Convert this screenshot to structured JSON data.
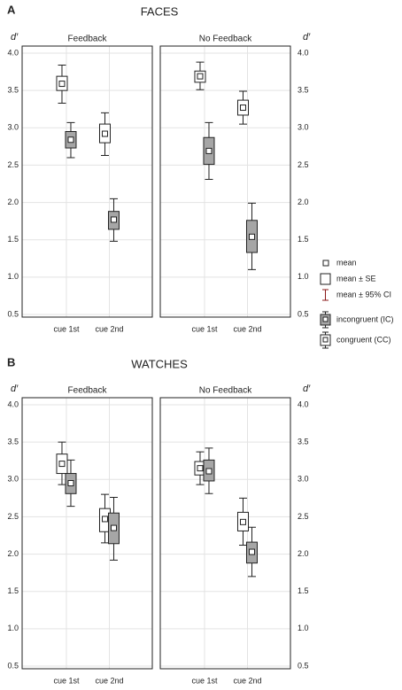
{
  "figure_rows": [
    {
      "label": "A",
      "title": "FACES"
    },
    {
      "label": "B",
      "title": "WATCHES"
    }
  ],
  "legend": [
    "mean",
    "mean ± SE",
    "mean ± 95% CI"
  ],
  "chart_data": [
    {
      "type": "box",
      "title": "Feedback",
      "ylabel": "d′",
      "yaxis_side": "left",
      "categories": [
        "cue 1st",
        "cue 2nd"
      ],
      "ylim": [
        0.5,
        4.0
      ],
      "yticks": [
        0.5,
        {
          "value": 1,
          "label": "1.0"
        },
        1.5,
        {
          "value": 2,
          "label": "2.0"
        },
        2.5,
        {
          "value": 3,
          "label": "3.0"
        },
        3.5,
        {
          "value": 4,
          "label": "4.0"
        }
      ],
      "grid": true,
      "series": [
        {
          "name": "congruent (CC)",
          "color": "#ffffff",
          "values": [
            3.59,
            2.92
          ],
          "se_range": [
            [
              3.5,
              3.69
            ],
            [
              2.8,
              3.05
            ]
          ],
          "ci_range": [
            [
              3.33,
              3.84
            ],
            [
              2.63,
              3.2
            ]
          ]
        },
        {
          "name": "incongruent (IC)",
          "color": "#a6a6a6",
          "values": [
            2.84,
            1.77
          ],
          "se_range": [
            [
              2.73,
              2.95
            ],
            [
              1.64,
              1.88
            ]
          ],
          "ci_range": [
            [
              2.6,
              3.07
            ],
            [
              1.48,
              2.05
            ]
          ]
        }
      ]
    },
    {
      "type": "box",
      "title": "No Feedback",
      "ylabel": "d′",
      "yaxis_side": "right",
      "categories": [
        "cue 1st",
        "cue 2nd"
      ],
      "ylim": [
        0.5,
        4.0
      ],
      "yticks": [
        0.5,
        {
          "value": 1,
          "label": "1.0"
        },
        1.5,
        {
          "value": 2,
          "label": "2.0"
        },
        2.5,
        {
          "value": 3,
          "label": "3.0"
        },
        3.5,
        {
          "value": 4,
          "label": "4.0"
        }
      ],
      "grid": true,
      "series": [
        {
          "name": "congruent (CC)",
          "color": "#ffffff",
          "values": [
            3.69,
            3.27
          ],
          "se_range": [
            [
              3.61,
              3.76
            ],
            [
              3.17,
              3.37
            ]
          ],
          "ci_range": [
            [
              3.51,
              3.88
            ],
            [
              3.05,
              3.49
            ]
          ]
        },
        {
          "name": "incongruent (IC)",
          "color": "#a6a6a6",
          "values": [
            2.69,
            1.54
          ],
          "se_range": [
            [
              2.51,
              2.87
            ],
            [
              1.33,
              1.76
            ]
          ],
          "ci_range": [
            [
              2.31,
              3.07
            ],
            [
              1.1,
              1.99
            ]
          ]
        }
      ]
    },
    {
      "type": "box",
      "title": "Feedback",
      "ylabel": "d′",
      "yaxis_side": "left",
      "categories": [
        "cue 1st",
        "cue 2nd"
      ],
      "ylim": [
        0.5,
        4.0
      ],
      "yticks": [
        0.5,
        {
          "value": 1,
          "label": "1.0"
        },
        1.5,
        {
          "value": 2,
          "label": "2.0"
        },
        2.5,
        {
          "value": 3,
          "label": "3.0"
        },
        3.5,
        {
          "value": 4,
          "label": "4.0"
        }
      ],
      "grid": true,
      "series": [
        {
          "name": "congruent (CC)",
          "color": "#ffffff",
          "values": [
            3.21,
            2.47
          ],
          "se_range": [
            [
              3.08,
              3.34
            ],
            [
              2.3,
              2.61
            ]
          ],
          "ci_range": [
            [
              2.93,
              3.5
            ],
            [
              2.15,
              2.8
            ]
          ]
        },
        {
          "name": "incongruent (IC)",
          "color": "#a6a6a6",
          "values": [
            2.95,
            2.35
          ],
          "se_range": [
            [
              2.81,
              3.08
            ],
            [
              2.14,
              2.55
            ]
          ],
          "ci_range": [
            [
              2.64,
              3.26
            ],
            [
              1.92,
              2.76
            ]
          ]
        }
      ]
    },
    {
      "type": "box",
      "title": "No Feedback",
      "ylabel": "d′",
      "yaxis_side": "right",
      "categories": [
        "cue 1st",
        "cue 2nd"
      ],
      "ylim": [
        0.5,
        4.0
      ],
      "yticks": [
        0.5,
        {
          "value": 1,
          "label": "1.0"
        },
        1.5,
        {
          "value": 2,
          "label": "2.0"
        },
        2.5,
        {
          "value": 3,
          "label": "3.0"
        },
        3.5,
        {
          "value": 4,
          "label": "4.0"
        }
      ],
      "grid": true,
      "series": [
        {
          "name": "congruent (CC)",
          "color": "#ffffff",
          "values": [
            3.15,
            2.43
          ],
          "se_range": [
            [
              3.06,
              3.24
            ],
            [
              2.31,
              2.56
            ]
          ],
          "ci_range": [
            [
              2.93,
              3.37
            ],
            [
              2.12,
              2.75
            ]
          ]
        },
        {
          "name": "incongruent (IC)",
          "color": "#a6a6a6",
          "values": [
            3.11,
            2.03
          ],
          "se_range": [
            [
              2.98,
              3.26
            ],
            [
              1.88,
              2.16
            ]
          ],
          "ci_range": [
            [
              2.81,
              3.42
            ],
            [
              1.7,
              2.36
            ]
          ]
        }
      ]
    }
  ]
}
